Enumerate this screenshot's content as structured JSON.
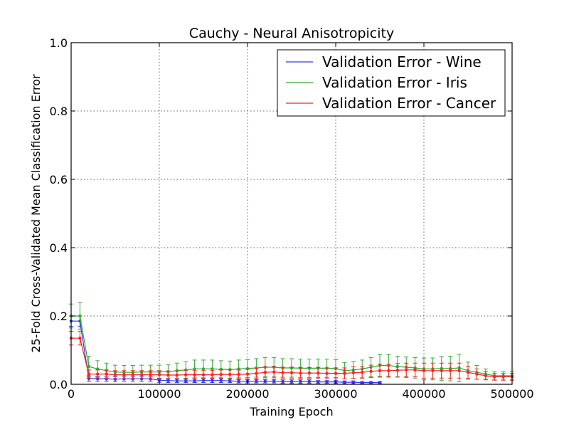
{
  "chart_data": {
    "type": "line",
    "title": "Cauchy - Neural Anisotropicity",
    "xlabel": "Training Epoch",
    "ylabel": "25-Fold Cross-Validated Mean Classification Error",
    "xlim": [
      0,
      500000
    ],
    "ylim": [
      0.0,
      1.0
    ],
    "xticks": [
      0,
      100000,
      200000,
      300000,
      400000,
      500000
    ],
    "xtick_labels": [
      "0",
      "100000",
      "200000",
      "300000",
      "400000",
      "500000"
    ],
    "yticks": [
      0.0,
      0.2,
      0.4,
      0.6,
      0.8,
      1.0
    ],
    "ytick_labels": [
      "0.0",
      "0.2",
      "0.4",
      "0.6",
      "0.8",
      "1.0"
    ],
    "grid": true,
    "legend_position": "top-right",
    "series": [
      {
        "name": "Validation Error - Wine",
        "color": "#3333ff",
        "x": [
          0,
          10000,
          20000,
          30000,
          40000,
          50000,
          60000,
          70000,
          80000,
          90000,
          100000,
          110000,
          120000,
          130000,
          140000,
          150000,
          160000,
          170000,
          180000,
          190000,
          200000,
          210000,
          220000,
          230000,
          240000,
          250000,
          260000,
          270000,
          280000,
          290000,
          300000,
          310000,
          320000,
          330000,
          340000,
          350000
        ],
        "y": [
          0.185,
          0.185,
          0.017,
          0.016,
          0.016,
          0.015,
          0.016,
          0.016,
          0.016,
          0.016,
          0.012,
          0.011,
          0.01,
          0.01,
          0.01,
          0.011,
          0.011,
          0.011,
          0.01,
          0.009,
          0.009,
          0.009,
          0.009,
          0.009,
          0.008,
          0.008,
          0.008,
          0.008,
          0.007,
          0.007,
          0.007,
          0.006,
          0.006,
          0.005,
          0.005,
          0.005
        ],
        "err": [
          0.015,
          0.015,
          0.008,
          0.007,
          0.007,
          0.007,
          0.007,
          0.007,
          0.007,
          0.007,
          0.006,
          0.006,
          0.005,
          0.005,
          0.005,
          0.006,
          0.006,
          0.006,
          0.005,
          0.005,
          0.005,
          0.005,
          0.005,
          0.005,
          0.005,
          0.005,
          0.005,
          0.005,
          0.004,
          0.004,
          0.004,
          0.004,
          0.004,
          0.003,
          0.003,
          0.003
        ]
      },
      {
        "name": "Validation Error - Iris",
        "color": "#33aa33",
        "x": [
          0,
          10000,
          20000,
          30000,
          40000,
          50000,
          60000,
          70000,
          80000,
          90000,
          100000,
          110000,
          120000,
          130000,
          140000,
          150000,
          160000,
          170000,
          180000,
          190000,
          200000,
          210000,
          220000,
          230000,
          240000,
          250000,
          260000,
          270000,
          280000,
          290000,
          300000,
          310000,
          320000,
          330000,
          340000,
          350000,
          360000,
          370000,
          380000,
          390000,
          400000,
          410000,
          420000,
          430000,
          440000,
          450000,
          460000,
          470000,
          480000,
          490000,
          500000
        ],
        "y": [
          0.2,
          0.2,
          0.052,
          0.045,
          0.04,
          0.036,
          0.035,
          0.035,
          0.036,
          0.036,
          0.036,
          0.037,
          0.04,
          0.042,
          0.045,
          0.045,
          0.045,
          0.044,
          0.043,
          0.045,
          0.046,
          0.048,
          0.05,
          0.05,
          0.048,
          0.048,
          0.047,
          0.047,
          0.047,
          0.047,
          0.046,
          0.04,
          0.042,
          0.045,
          0.05,
          0.055,
          0.055,
          0.052,
          0.05,
          0.048,
          0.045,
          0.045,
          0.046,
          0.046,
          0.048,
          0.04,
          0.035,
          0.03,
          0.025,
          0.025,
          0.025
        ],
        "err": [
          0.035,
          0.04,
          0.03,
          0.024,
          0.022,
          0.02,
          0.02,
          0.02,
          0.02,
          0.02,
          0.02,
          0.02,
          0.022,
          0.024,
          0.026,
          0.026,
          0.026,
          0.025,
          0.025,
          0.026,
          0.026,
          0.027,
          0.028,
          0.028,
          0.027,
          0.027,
          0.027,
          0.027,
          0.027,
          0.027,
          0.026,
          0.024,
          0.025,
          0.026,
          0.028,
          0.032,
          0.032,
          0.03,
          0.03,
          0.03,
          0.032,
          0.032,
          0.035,
          0.036,
          0.04,
          0.025,
          0.02,
          0.015,
          0.012,
          0.012,
          0.012
        ]
      },
      {
        "name": "Validation Error - Cancer",
        "color": "#ff2222",
        "x": [
          0,
          10000,
          20000,
          30000,
          40000,
          50000,
          60000,
          70000,
          80000,
          90000,
          100000,
          110000,
          120000,
          130000,
          140000,
          150000,
          160000,
          170000,
          180000,
          190000,
          200000,
          210000,
          220000,
          230000,
          240000,
          250000,
          260000,
          270000,
          280000,
          290000,
          300000,
          310000,
          320000,
          330000,
          340000,
          350000,
          360000,
          370000,
          380000,
          390000,
          400000,
          410000,
          420000,
          430000,
          440000,
          450000,
          460000,
          470000,
          480000,
          490000,
          500000
        ],
        "y": [
          0.135,
          0.135,
          0.03,
          0.03,
          0.03,
          0.028,
          0.028,
          0.028,
          0.028,
          0.028,
          0.028,
          0.027,
          0.027,
          0.028,
          0.028,
          0.028,
          0.028,
          0.029,
          0.029,
          0.029,
          0.03,
          0.032,
          0.035,
          0.036,
          0.034,
          0.034,
          0.033,
          0.033,
          0.033,
          0.032,
          0.032,
          0.032,
          0.034,
          0.035,
          0.038,
          0.04,
          0.04,
          0.041,
          0.042,
          0.042,
          0.04,
          0.04,
          0.04,
          0.04,
          0.04,
          0.035,
          0.03,
          0.025,
          0.022,
          0.022,
          0.022
        ],
        "err": [
          0.02,
          0.02,
          0.012,
          0.012,
          0.012,
          0.012,
          0.012,
          0.012,
          0.012,
          0.012,
          0.012,
          0.012,
          0.012,
          0.012,
          0.012,
          0.012,
          0.012,
          0.013,
          0.013,
          0.013,
          0.014,
          0.015,
          0.016,
          0.017,
          0.016,
          0.016,
          0.016,
          0.016,
          0.016,
          0.016,
          0.016,
          0.016,
          0.017,
          0.017,
          0.018,
          0.019,
          0.019,
          0.02,
          0.02,
          0.02,
          0.022,
          0.022,
          0.022,
          0.022,
          0.022,
          0.018,
          0.015,
          0.012,
          0.01,
          0.01,
          0.01
        ]
      }
    ]
  }
}
